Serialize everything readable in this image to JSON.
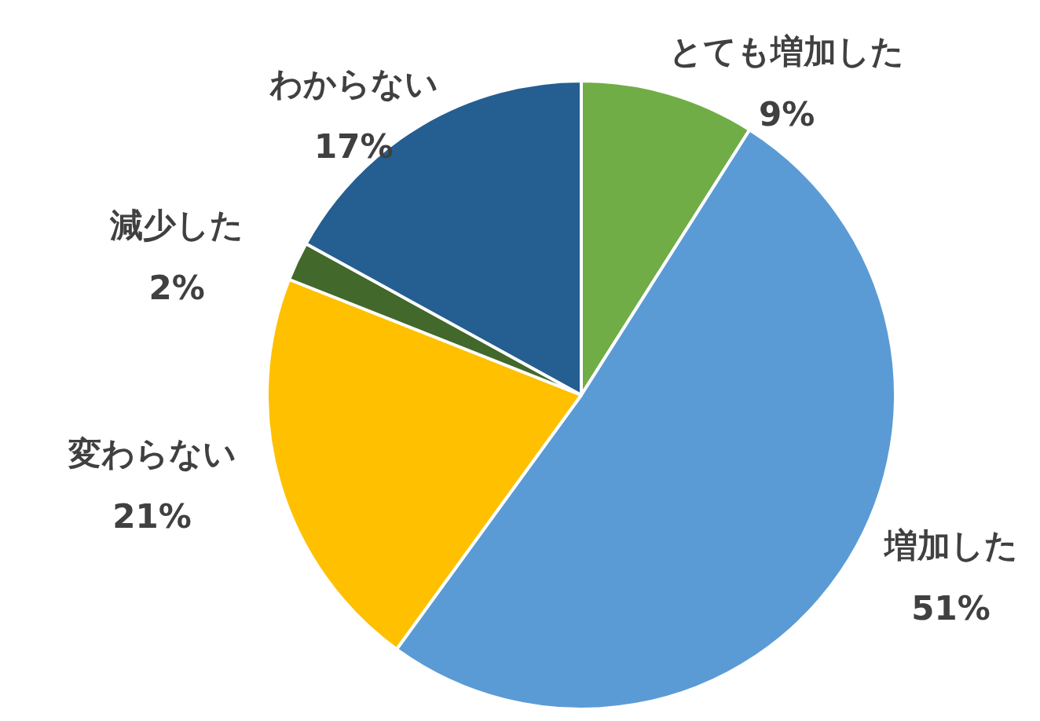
{
  "chart_data": {
    "type": "pie",
    "categories": [
      "とても増加した",
      "増加した",
      "変わらない",
      "減少した",
      "わからない"
    ],
    "values": [
      9,
      51,
      21,
      2,
      17
    ],
    "colors": [
      "#70ad47",
      "#5b9bd5",
      "#ffc000",
      "#43682b",
      "#255e91"
    ],
    "value_labels": [
      "9%",
      "51%",
      "21%",
      "2%",
      "17%"
    ]
  }
}
